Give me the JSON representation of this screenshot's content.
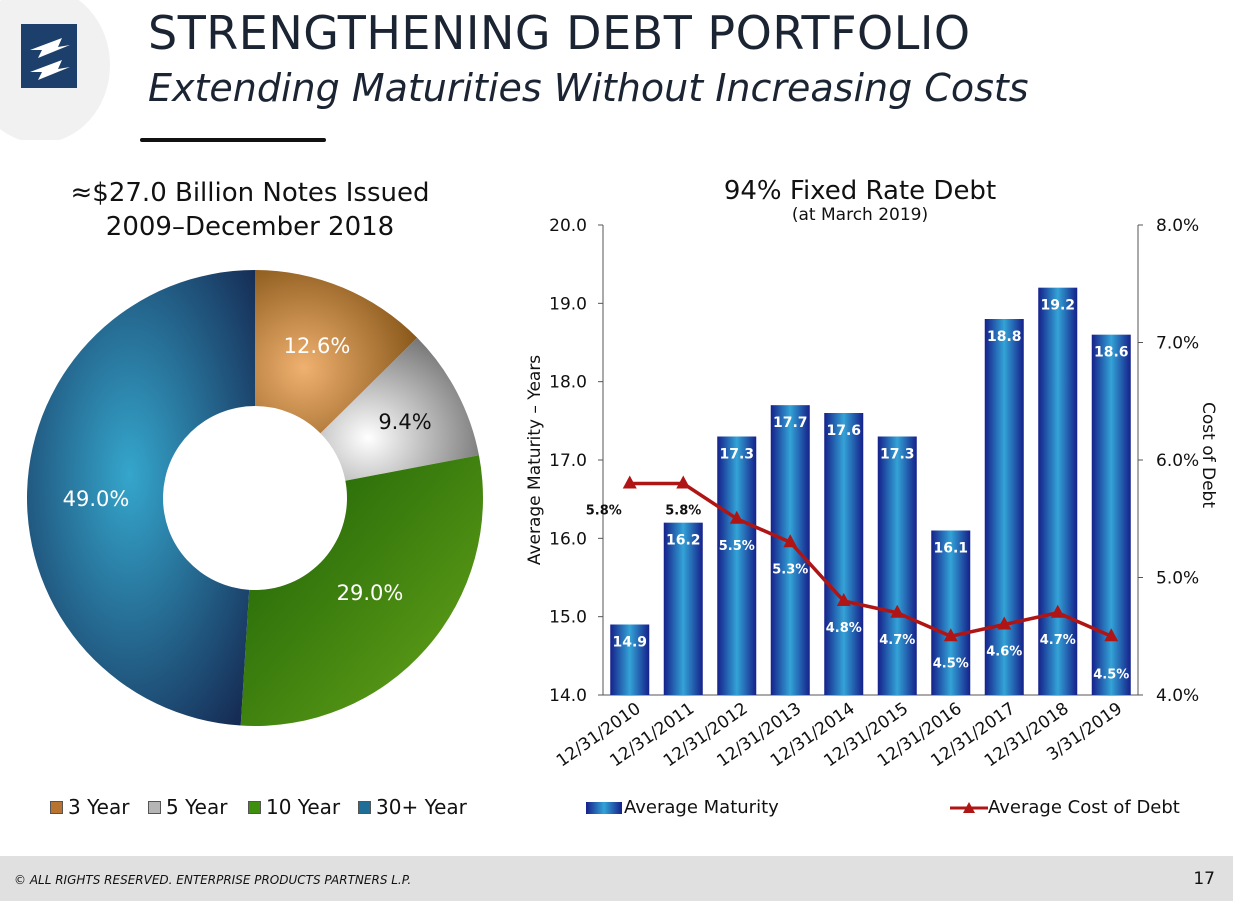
{
  "header": {
    "title": "STRENGTHENING DEBT PORTFOLIO",
    "subtitle": "Extending Maturities Without Increasing Costs"
  },
  "pie": {
    "title_line1": "≈$27.0 Billion Notes Issued",
    "title_line2": "2009–December 2018"
  },
  "bar": {
    "title": "94% Fixed Rate Debt",
    "subtitle": "(at March 2019)"
  },
  "legend_pie": [
    {
      "label": "3 Year",
      "color": "#b8732e"
    },
    {
      "label": "5 Year",
      "color": "#b5b5b5"
    },
    {
      "label": "10 Year",
      "color": "#3f8f0e"
    },
    {
      "label": "30+ Year",
      "color": "#1f6e98"
    }
  ],
  "legend_bar": {
    "maturity_label": "Average Maturity",
    "cost_label": "Average Cost of Debt"
  },
  "footer": {
    "copyright": "© ALL RIGHTS RESERVED. ENTERPRISE PRODUCTS PARTNERS L.P.",
    "page": "17"
  },
  "chart_data": [
    {
      "type": "pie",
      "style": "donut",
      "title": "≈$27.0 Billion Notes Issued 2009–December 2018",
      "slices": [
        {
          "label": "3 Year",
          "value": 12.6,
          "display": "12.6%",
          "color": "#b8732e"
        },
        {
          "label": "5 Year",
          "value": 9.4,
          "display": "9.4%",
          "color": "#b5b5b5"
        },
        {
          "label": "10 Year",
          "value": 29.0,
          "display": "29.0%",
          "color": "#3f8f0e"
        },
        {
          "label": "30+ Year",
          "value": 49.0,
          "display": "49.0%",
          "color": "#1f6e98"
        }
      ],
      "legend_position": "bottom"
    },
    {
      "type": "bar",
      "title": "94% Fixed Rate Debt",
      "subtitle": "(at March 2019)",
      "categories": [
        "12/31/2010",
        "12/31/2011",
        "12/31/2012",
        "12/31/2013",
        "12/31/2014",
        "12/31/2015",
        "12/31/2016",
        "12/31/2017",
        "12/31/2018",
        "3/31/2019"
      ],
      "series": [
        {
          "name": "Average Maturity",
          "kind": "bar",
          "axis": "left",
          "color": "#1c3fa0",
          "values": [
            14.9,
            16.2,
            17.3,
            17.7,
            17.6,
            17.3,
            16.1,
            18.8,
            19.2,
            18.6
          ],
          "labels": [
            "14.9",
            "16.2",
            "17.3",
            "17.7",
            "17.6",
            "17.3",
            "16.1",
            "18.8",
            "19.2",
            "18.6"
          ]
        },
        {
          "name": "Average Cost of Debt",
          "kind": "line",
          "axis": "right",
          "color": "#b01515",
          "values": [
            5.8,
            5.8,
            5.5,
            5.3,
            4.8,
            4.7,
            4.5,
            4.6,
            4.7,
            4.5
          ],
          "labels": [
            "5.8%",
            "5.8%",
            "5.5%",
            "5.3%",
            "4.8%",
            "4.7%",
            "4.5%",
            "4.6%",
            "4.7%",
            "4.5%"
          ]
        }
      ],
      "ylabel": "Average Maturity – Years",
      "ylabel_right": "Cost of Debt",
      "ylim": [
        14.0,
        20.0
      ],
      "yticks": [
        "14.0",
        "15.0",
        "16.0",
        "17.0",
        "18.0",
        "19.0",
        "20.0"
      ],
      "ylim_right": [
        4.0,
        8.0
      ],
      "yticks_right": [
        "4.0%",
        "5.0%",
        "6.0%",
        "7.0%",
        "8.0%"
      ],
      "grid": false,
      "legend_position": "bottom"
    }
  ]
}
